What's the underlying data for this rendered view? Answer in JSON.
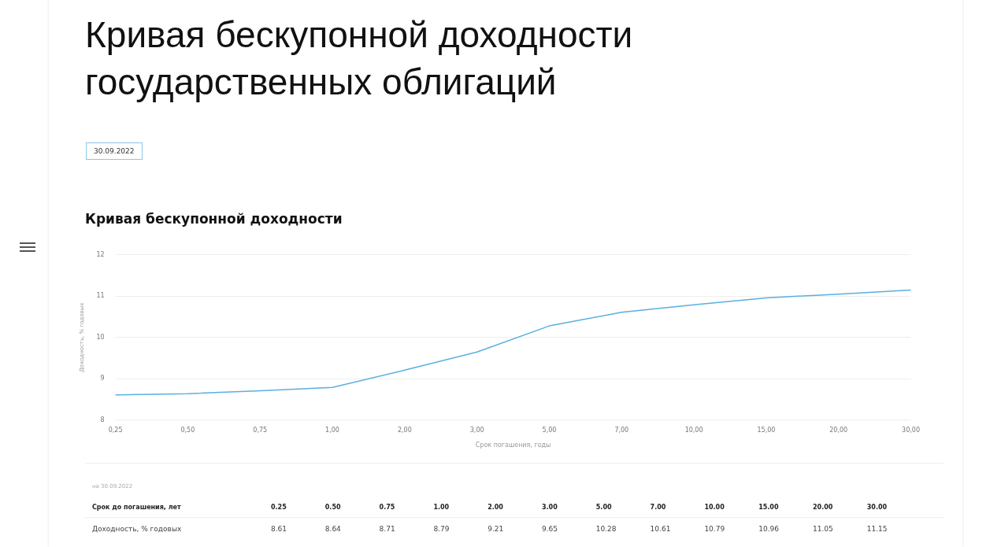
{
  "chart_data": {
    "type": "line",
    "title": "Кривая бескупонной доходности государственных облигаций",
    "subtitle": "Кривая бескупонной доходности",
    "xlabel": "Срок погашения, годы",
    "ylabel": "Доходность, % годовых",
    "categories": [
      "0,25",
      "0,50",
      "0,75",
      "1,00",
      "2,00",
      "3,00",
      "5,00",
      "7,00",
      "10,00",
      "15,00",
      "20,00",
      "30,00"
    ],
    "series": [
      {
        "color": "#5aafe0",
        "values": [
          8.61,
          8.64,
          8.71,
          8.79,
          9.21,
          9.65,
          10.28,
          10.61,
          10.79,
          10.96,
          11.05,
          11.15
        ]
      }
    ],
    "ylim": [
      8,
      12
    ],
    "yticks": [
      8,
      9,
      10,
      11,
      12
    ],
    "grid": "y",
    "marker": "none",
    "line_style": "solid",
    "legend": false,
    "annotations": [
      "30.09.2022",
      "на 30.09.2022",
      "Срок до погашения, лет",
      "Доходность, % годовых",
      "0.25",
      "0.50",
      "0.75",
      "1.00",
      "2.00",
      "3.00",
      "5.00",
      "7.00",
      "10.00",
      "15.00",
      "20.00",
      "30.00",
      "8.61",
      "8.64",
      "8.71",
      "8.79",
      "9.21",
      "9.65",
      "10.28",
      "10.61",
      "10.79",
      "10.96",
      "11.05",
      "11.15"
    ]
  }
}
